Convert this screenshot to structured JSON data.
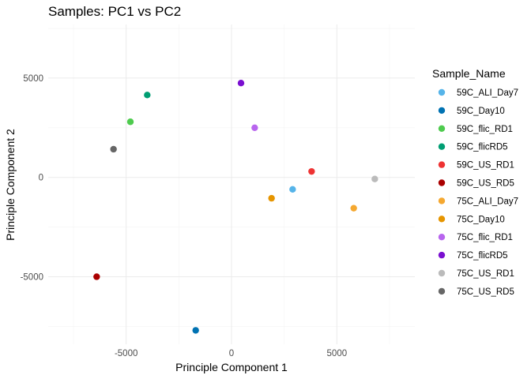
{
  "chart_data": {
    "type": "scatter",
    "title": "Samples: PC1 vs PC2",
    "xlabel": "Principle Component 1",
    "ylabel": "Principle Component 2",
    "xlim": [
      -8700,
      8700
    ],
    "ylim": [
      -8400,
      7700
    ],
    "x_ticks": [
      -5000,
      0,
      5000
    ],
    "y_ticks": [
      -5000,
      0,
      5000
    ],
    "x_tick_labels": [
      "-5000",
      "0",
      "5000"
    ],
    "y_tick_labels": [
      "-5000",
      "0",
      "5000"
    ],
    "grid": true,
    "legend_title": "Sample_Name",
    "legend_position": "right",
    "series": [
      {
        "name": "59C_ALI_Day7",
        "color": "#56B4E9",
        "x": 2900,
        "y": -600
      },
      {
        "name": "59C_Day10",
        "color": "#0072B2",
        "x": -1700,
        "y": -7700
      },
      {
        "name": "59C_flic_RD1",
        "color": "#4ECB4E",
        "x": -4800,
        "y": 2800
      },
      {
        "name": "59C_flicRD5",
        "color": "#009E73",
        "x": -4000,
        "y": 4150
      },
      {
        "name": "59C_US_RD1",
        "color": "#EE3333",
        "x": 3800,
        "y": 300
      },
      {
        "name": "59C_US_RD5",
        "color": "#AA0000",
        "x": -6400,
        "y": -5000
      },
      {
        "name": "75C_ALI_Day7",
        "color": "#F5A830",
        "x": 5800,
        "y": -1550
      },
      {
        "name": "75C_Day10",
        "color": "#E69500",
        "x": 1900,
        "y": -1050
      },
      {
        "name": "75C_flic_RD1",
        "color": "#B865EE",
        "x": 1100,
        "y": 2500
      },
      {
        "name": "75C_flicRD5",
        "color": "#7A0FD0",
        "x": 450,
        "y": 4750
      },
      {
        "name": "75C_US_RD1",
        "color": "#BBBBBB",
        "x": 6800,
        "y": -80
      },
      {
        "name": "75C_US_RD5",
        "color": "#666666",
        "x": -5600,
        "y": 1420
      }
    ]
  }
}
